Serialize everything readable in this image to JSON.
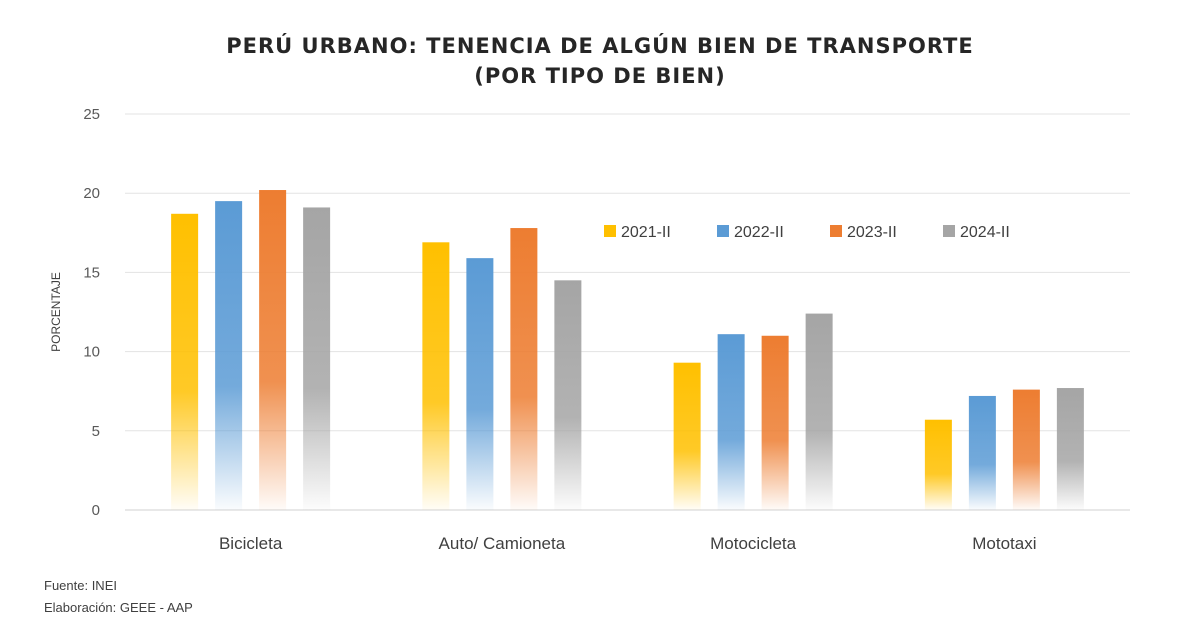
{
  "chart_data": {
    "type": "bar",
    "title": "PERÚ URBANO: TENENCIA DE ALGÚN BIEN DE TRANSPORTE",
    "subtitle": "(POR TIPO DE BIEN)",
    "xlabel": "",
    "ylabel": "PORCENTAJE",
    "ylim": [
      0,
      25
    ],
    "yticks": [
      "0",
      "5",
      "10",
      "15",
      "20",
      "25"
    ],
    "grid": true,
    "legend_position": "top-right",
    "categories": [
      "Bicicleta",
      "Auto/ Camioneta",
      "Motocicleta",
      "Mototaxi"
    ],
    "series": [
      {
        "name": "2021-II",
        "color": "#FFC000",
        "values": [
          18.7,
          16.9,
          9.3,
          5.7
        ]
      },
      {
        "name": "2022-II",
        "color": "#5B9BD5",
        "values": [
          19.5,
          15.9,
          11.1,
          7.2
        ]
      },
      {
        "name": "2023-II",
        "color": "#ED7D31",
        "values": [
          20.2,
          17.8,
          11.0,
          7.6
        ]
      },
      {
        "name": "2024-II",
        "color": "#A5A5A5",
        "values": [
          19.1,
          14.5,
          12.4,
          7.7
        ]
      }
    ]
  },
  "footer": {
    "source": "Fuente: INEI",
    "elaboration": "Elaboración: GEEE - AAP"
  }
}
